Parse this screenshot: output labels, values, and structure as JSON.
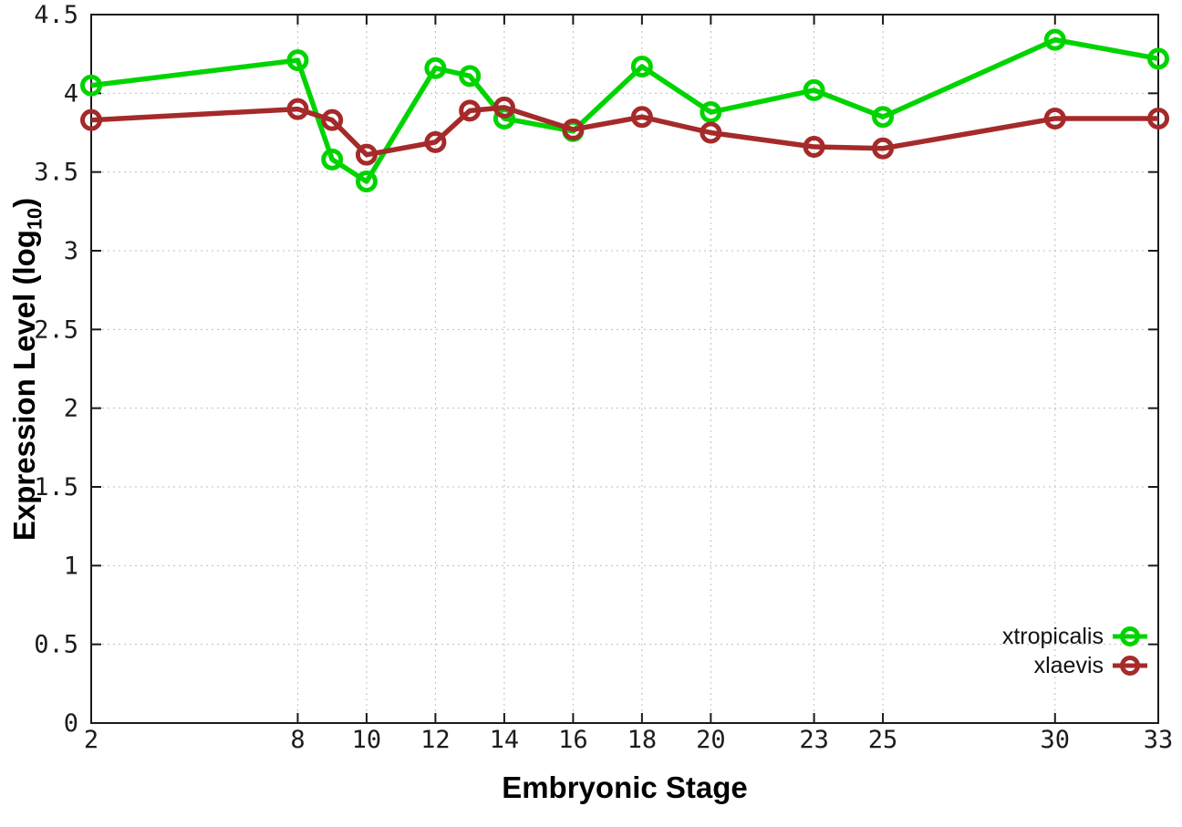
{
  "chart_data": {
    "type": "line",
    "x": [
      2,
      8,
      9,
      10,
      12,
      13,
      14,
      16,
      18,
      20,
      23,
      25,
      30,
      33
    ],
    "series": [
      {
        "name": "xtropicalis",
        "color": "#00d400",
        "values": [
          4.05,
          4.21,
          3.58,
          3.44,
          4.16,
          4.11,
          3.84,
          3.76,
          4.17,
          3.88,
          4.02,
          3.85,
          4.34,
          4.22
        ]
      },
      {
        "name": "xlaevis",
        "color": "#a52a2a",
        "values": [
          3.83,
          3.9,
          3.83,
          3.61,
          3.69,
          3.89,
          3.91,
          3.77,
          3.85,
          3.75,
          3.66,
          3.65,
          3.84,
          3.84
        ]
      }
    ],
    "title": "",
    "xlabel": "Embryonic Stage",
    "ylabel": "Expression Level (log10)",
    "xlim": [
      2,
      33
    ],
    "ylim": [
      0,
      4.5
    ],
    "x_ticks": [
      2,
      8,
      10,
      12,
      14,
      16,
      18,
      20,
      23,
      25,
      30,
      33
    ],
    "y_ticks": [
      0,
      0.5,
      1,
      1.5,
      2,
      2.5,
      3,
      3.5,
      4,
      4.5
    ],
    "grid": true,
    "legend_position": "bottom-right"
  },
  "labels": {
    "x_title": "Embryonic Stage",
    "y_title_prefix": "Expression Level (log",
    "y_title_sub": "10",
    "y_title_suffix": ")"
  }
}
